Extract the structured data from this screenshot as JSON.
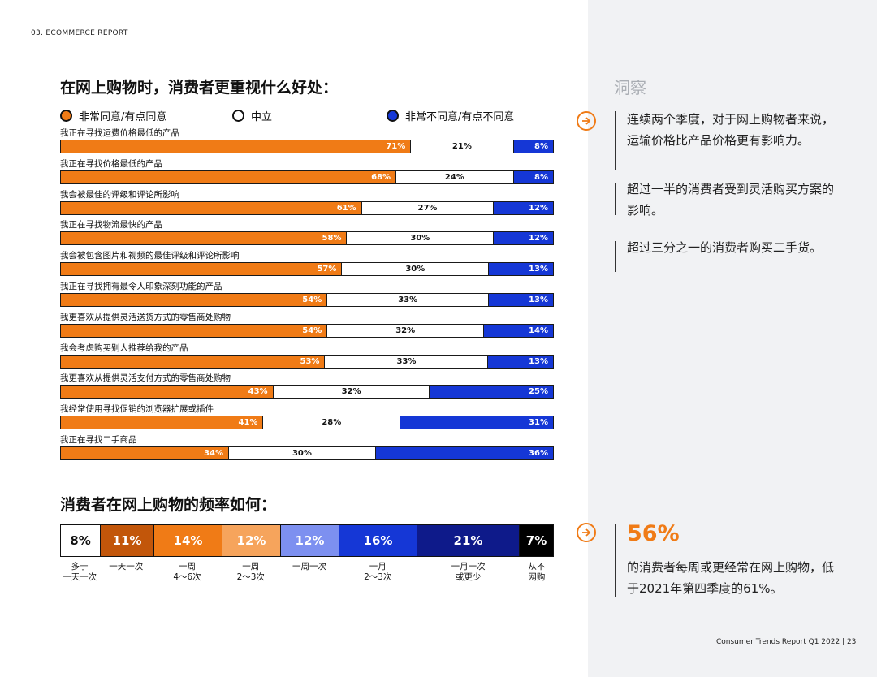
{
  "header": {
    "section": "03. ECOMMERCE REPORT"
  },
  "footer": {
    "text": "Consumer Trends Report Q1 2022  |  23"
  },
  "colors": {
    "agree": "#f07b16",
    "neutral": "#ffffff",
    "disagree": "#1537d6"
  },
  "chart_data": [
    {
      "type": "bar",
      "stacked": true,
      "orientation": "horizontal",
      "title": "在网上购物时，消费者更重视什么好处：",
      "legend": [
        "非常同意/有点同意",
        "中立",
        "非常不同意/有点不同意"
      ],
      "categories": [
        "我正在寻找运费价格最低的产品",
        "我正在寻找价格最低的产品",
        "我会被最佳的评级和评论所影响",
        "我正在寻找物流最快的产品",
        "我会被包含图片和视频的最佳评级和评论所影响",
        "我正在寻找拥有最令人印象深刻功能的产品",
        "我更喜欢从提供灵活送货方式的零售商处购物",
        "我会考虑购买别人推荐给我的产品",
        "我更喜欢从提供灵活支付方式的零售商处购物",
        "我经常使用寻找促销的浏览器扩展或插件",
        "我正在寻找二手商品"
      ],
      "series": [
        {
          "name": "非常同意/有点同意",
          "values": [
            71,
            68,
            61,
            58,
            57,
            54,
            54,
            53,
            43,
            41,
            34
          ]
        },
        {
          "name": "中立",
          "values": [
            21,
            24,
            27,
            30,
            30,
            33,
            32,
            33,
            32,
            28,
            30
          ]
        },
        {
          "name": "非常不同意/有点不同意",
          "values": [
            8,
            8,
            12,
            12,
            13,
            13,
            14,
            13,
            25,
            31,
            36
          ]
        }
      ],
      "unit": "%"
    },
    {
      "type": "bar",
      "stacked": true,
      "orientation": "horizontal",
      "title": "消费者在网上购物的频率如何：",
      "categories": [
        "多于\n一天一次",
        "一天一次",
        "一周\n4～6次",
        "一周\n2～3次",
        "一周一次",
        "一月\n2～3次",
        "一月一次\n或更少",
        "从不\n网购"
      ],
      "values": [
        8,
        11,
        14,
        12,
        12,
        16,
        21,
        7
      ],
      "colors": [
        "#ffffff",
        "#c2560a",
        "#f07b16",
        "#f6a45c",
        "#7d90f0",
        "#1537d6",
        "#0e1a8a",
        "#000000"
      ],
      "text_colors": [
        "#111111",
        "#ffffff",
        "#ffffff",
        "#ffffff",
        "#ffffff",
        "#ffffff",
        "#ffffff",
        "#ffffff"
      ],
      "unit": "%"
    }
  ],
  "insights": {
    "title": "洞察",
    "items": [
      "连续两个季度，对于网上购物者来说，运输价格比产品价格更有影响力。",
      "超过一半的消费者受到灵活购买方案的影响。",
      "超过三分之一的消费者购买二手货。"
    ],
    "stat": {
      "value": "56%",
      "text": "的消费者每周或更经常在网上购物，低于2021年第四季度的61%。"
    }
  }
}
